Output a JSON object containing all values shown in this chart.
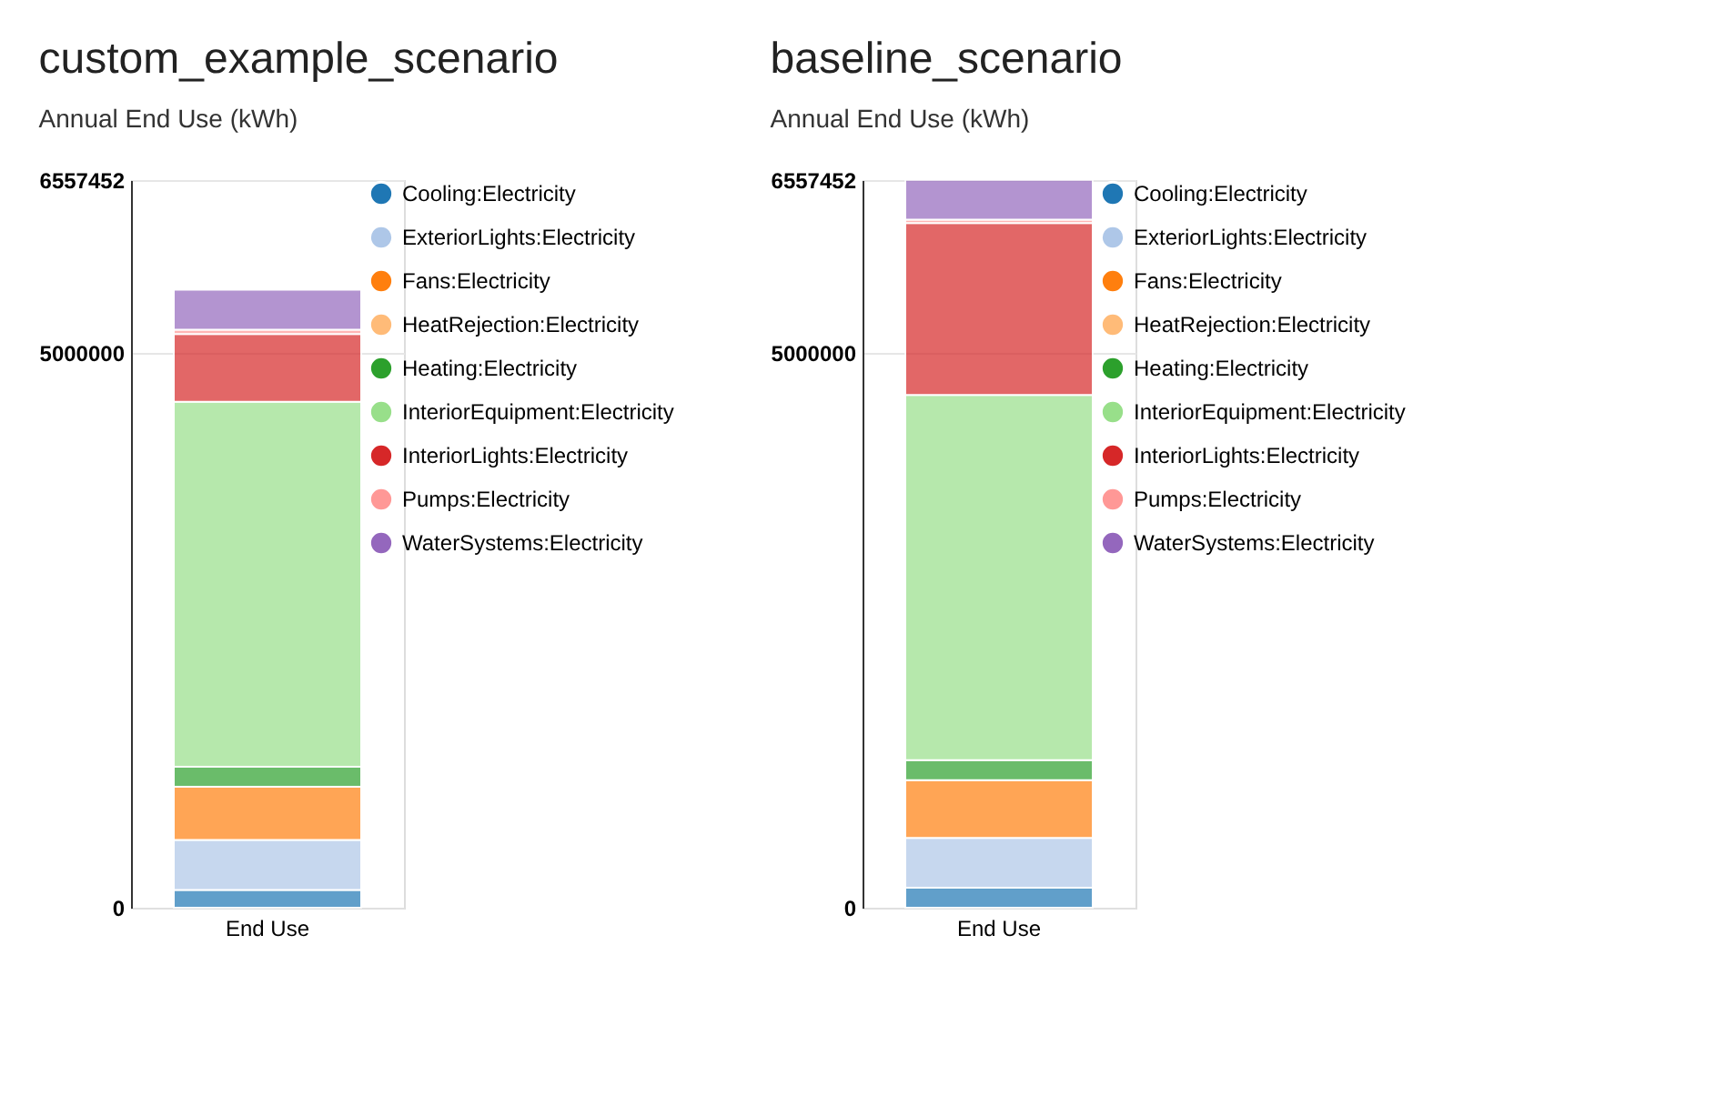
{
  "chart_data": [
    {
      "type": "bar",
      "title": "custom_example_scenario",
      "subtitle": "Annual End Use (kWh)",
      "categories": [
        "End Use"
      ],
      "stacked": true,
      "ylim": [
        0,
        6557452
      ],
      "yticks": [
        0,
        5000000,
        6557452
      ],
      "grid": "y",
      "legend": "right",
      "series": [
        {
          "name": "Cooling:Electricity",
          "color": "#1f77b4",
          "values": [
            160000
          ]
        },
        {
          "name": "ExteriorLights:Electricity",
          "color": "#aec7e8",
          "values": [
            450000
          ]
        },
        {
          "name": "Fans:Electricity",
          "color": "#ff7f0e",
          "values": [
            480000
          ]
        },
        {
          "name": "HeatRejection:Electricity",
          "color": "#ffbb78",
          "values": [
            0
          ]
        },
        {
          "name": "Heating:Electricity",
          "color": "#2ca02c",
          "values": [
            180000
          ]
        },
        {
          "name": "InteriorEquipment:Electricity",
          "color": "#98df8a",
          "values": [
            3290000
          ]
        },
        {
          "name": "InteriorLights:Electricity",
          "color": "#d62728",
          "values": [
            610000
          ]
        },
        {
          "name": "Pumps:Electricity",
          "color": "#ff9896",
          "values": [
            40000
          ]
        },
        {
          "name": "WaterSystems:Electricity",
          "color": "#9467bd",
          "values": [
            360000
          ]
        }
      ]
    },
    {
      "type": "bar",
      "title": "baseline_scenario",
      "subtitle": "Annual End Use (kWh)",
      "categories": [
        "End Use"
      ],
      "stacked": true,
      "ylim": [
        0,
        6557452
      ],
      "yticks": [
        0,
        5000000,
        6557452
      ],
      "grid": "y",
      "legend": "right",
      "series": [
        {
          "name": "Cooling:Electricity",
          "color": "#1f77b4",
          "values": [
            180000
          ]
        },
        {
          "name": "ExteriorLights:Electricity",
          "color": "#aec7e8",
          "values": [
            450000
          ]
        },
        {
          "name": "Fans:Electricity",
          "color": "#ff7f0e",
          "values": [
            520000
          ]
        },
        {
          "name": "HeatRejection:Electricity",
          "color": "#ffbb78",
          "values": [
            0
          ]
        },
        {
          "name": "Heating:Electricity",
          "color": "#2ca02c",
          "values": [
            180000
          ]
        },
        {
          "name": "InteriorEquipment:Electricity",
          "color": "#98df8a",
          "values": [
            3290000
          ]
        },
        {
          "name": "InteriorLights:Electricity",
          "color": "#d62728",
          "values": [
            1550000
          ]
        },
        {
          "name": "Pumps:Electricity",
          "color": "#ff9896",
          "values": [
            30000
          ]
        },
        {
          "name": "WaterSystems:Electricity",
          "color": "#9467bd",
          "values": [
            360000
          ]
        }
      ]
    }
  ]
}
